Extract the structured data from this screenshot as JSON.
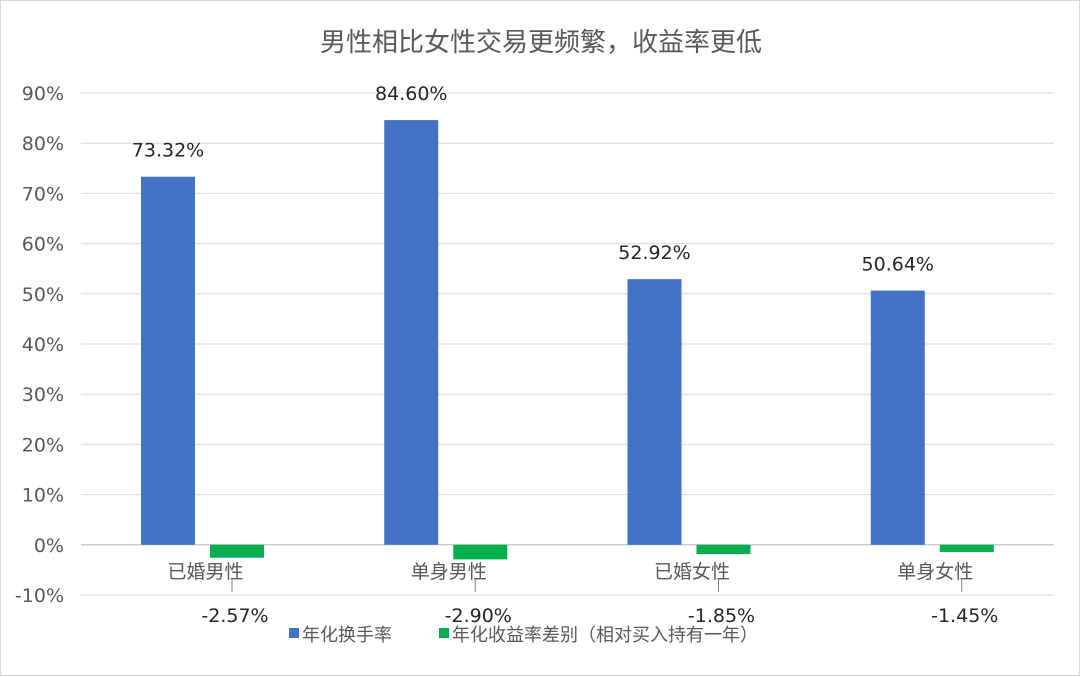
{
  "chart_data": {
    "type": "bar",
    "title": "男性相比女性交易更频繁，收益率更低",
    "xlabel": "",
    "ylabel": "",
    "categories": [
      "已婚男性",
      "单身男性",
      "已婚女性",
      "单身女性"
    ],
    "series": [
      {
        "name": "年化换手率",
        "color": "#4472c4",
        "values": [
          73.32,
          84.6,
          52.92,
          50.64
        ],
        "labels": [
          "73.32%",
          "84.60%",
          "52.92%",
          "50.64%"
        ]
      },
      {
        "name": "年化收益率差别（相对买入持有一年）",
        "color": "#00b050",
        "values": [
          -2.57,
          -2.9,
          -1.85,
          -1.45
        ],
        "labels": [
          "-2.57%",
          "-2.90%",
          "-1.85%",
          "-1.45%"
        ]
      }
    ],
    "ylim": [
      -10,
      90
    ],
    "yticks": [
      "-10%",
      "0%",
      "10%",
      "20%",
      "30%",
      "40%",
      "50%",
      "60%",
      "70%",
      "80%",
      "90%"
    ],
    "grid": true,
    "legend_position": "bottom"
  }
}
